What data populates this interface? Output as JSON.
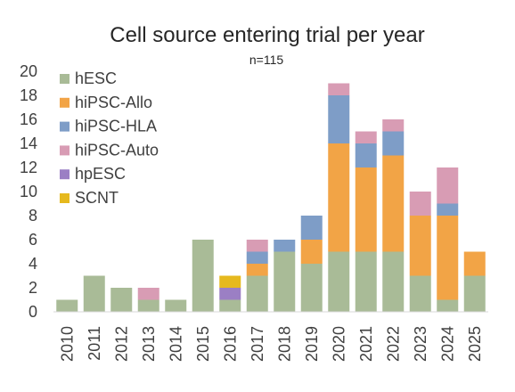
{
  "chart_data": {
    "type": "bar",
    "stacked": true,
    "title": "Cell source entering trial per year",
    "subtitle": "n=115",
    "xlabel": "",
    "ylabel": "",
    "ylim": [
      0,
      20
    ],
    "yticks": [
      0,
      2,
      4,
      6,
      8,
      10,
      12,
      14,
      16,
      18,
      20
    ],
    "grid": false,
    "legend_position": "top-left",
    "categories": [
      "2010",
      "2011",
      "2012",
      "2013",
      "2014",
      "2015",
      "2016",
      "2017",
      "2018",
      "2019",
      "2020",
      "2021",
      "2022",
      "2023",
      "2024",
      "2025"
    ],
    "series": [
      {
        "name": "hESC",
        "color": "#a9bb97",
        "values": [
          1,
          3,
          2,
          1,
          1,
          6,
          1,
          3,
          5,
          4,
          5,
          5,
          5,
          3,
          1,
          3
        ]
      },
      {
        "name": "hiPSC-Allo",
        "color": "#f2a446",
        "values": [
          0,
          0,
          0,
          0,
          0,
          0,
          0,
          1,
          0,
          2,
          9,
          7,
          8,
          5,
          7,
          2
        ]
      },
      {
        "name": "hiPSC-HLA",
        "color": "#7e9dc7",
        "values": [
          0,
          0,
          0,
          0,
          0,
          0,
          0,
          1,
          1,
          2,
          4,
          2,
          2,
          0,
          1,
          0
        ]
      },
      {
        "name": "hiPSC-Auto",
        "color": "#d89cb4",
        "values": [
          0,
          0,
          0,
          1,
          0,
          0,
          0,
          1,
          0,
          0,
          1,
          1,
          1,
          2,
          3,
          0
        ]
      },
      {
        "name": "hpESC",
        "color": "#9b7fc4",
        "values": [
          0,
          0,
          0,
          0,
          0,
          0,
          1,
          0,
          0,
          0,
          0,
          0,
          0,
          0,
          0,
          0
        ]
      },
      {
        "name": "SCNT",
        "color": "#e6b91e",
        "values": [
          0,
          0,
          0,
          0,
          0,
          0,
          1,
          0,
          0,
          0,
          0,
          0,
          0,
          0,
          0,
          0
        ]
      }
    ]
  }
}
